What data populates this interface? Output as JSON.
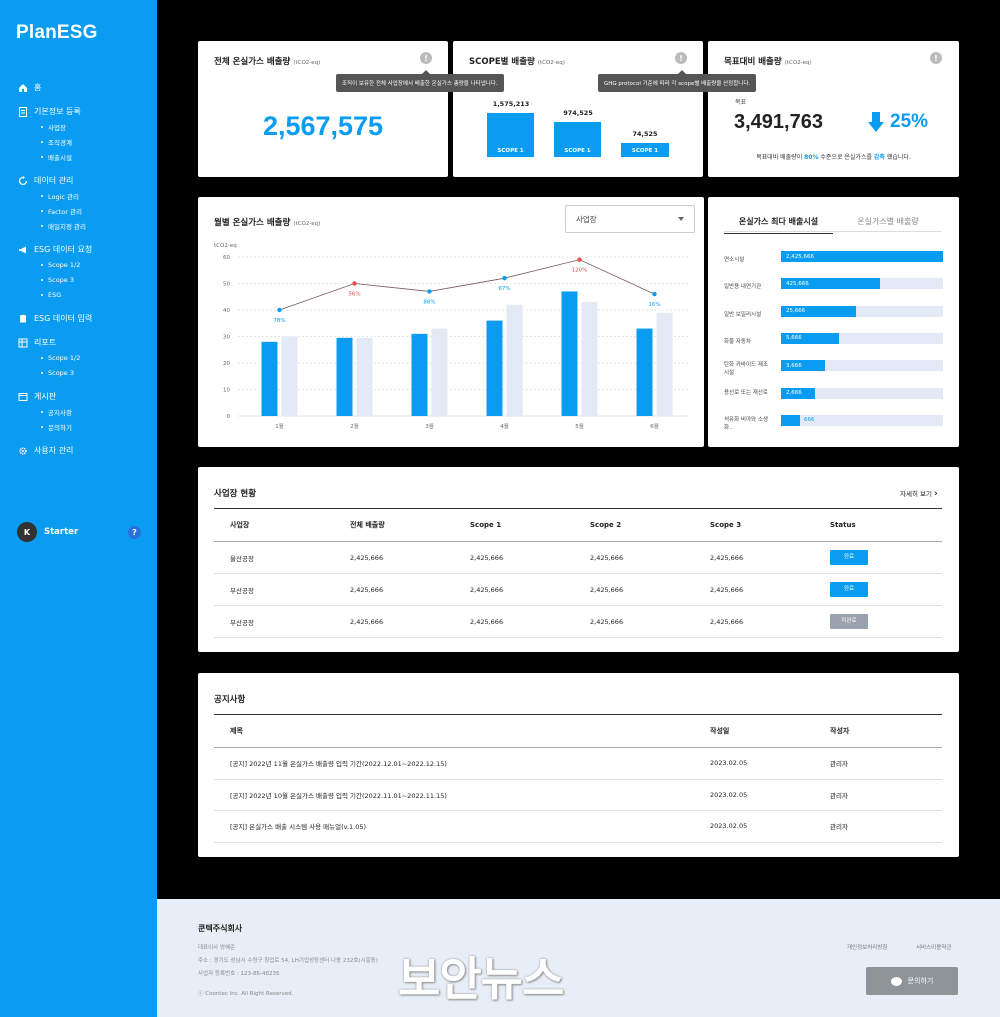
{
  "app": {
    "logo": "PlanESG"
  },
  "sidebar": {
    "items": [
      {
        "label": "홈",
        "icon": "home-icon",
        "subs": []
      },
      {
        "label": "기본정보 등록",
        "icon": "document-icon",
        "subs": [
          "사업장",
          "조직경계",
          "배출시설"
        ]
      },
      {
        "label": "데이터 관리",
        "icon": "refresh-icon",
        "subs": [
          "Logic 관리",
          "Factor 관리",
          "매일지정 관리"
        ]
      },
      {
        "label": "ESG 데이터 요청",
        "icon": "megaphone-icon",
        "subs": [
          "Scope 1/2",
          "Scope 3",
          "ESG"
        ]
      },
      {
        "label": "ESG 데이터 입력",
        "icon": "database-icon",
        "subs": []
      },
      {
        "label": "리포트",
        "icon": "report-icon",
        "subs": [
          "Scope 1/2",
          "Scope 3"
        ]
      },
      {
        "label": "게시판",
        "icon": "board-icon",
        "subs": [
          "공지사항",
          "문의하기"
        ]
      },
      {
        "label": "사용자 관리",
        "icon": "gear-icon",
        "subs": []
      }
    ],
    "user": {
      "initial": "K",
      "name": "Starter",
      "help": "?"
    }
  },
  "total_card": {
    "title": "전체 온실가스 배출량",
    "unit": "(tCO2-eq)",
    "value": "2,567,575",
    "tooltip": "조직이 보유한 전체 사업장에서 배출한 온실가스 총량을 나타냅니다."
  },
  "scope_card": {
    "title": "SCOPE별 배출량",
    "unit": "(tCO2-eq)",
    "tooltip": "GHG protocol 기준에 따라 각 scope별 배출량을 산정합니다.",
    "bars": [
      {
        "label": "SCOPE 1",
        "value": "1,575,213",
        "num": 1575213
      },
      {
        "label": "SCOPE 1",
        "value": "974,525",
        "num": 974525
      },
      {
        "label": "SCOPE 1",
        "value": "74,525",
        "num": 74525
      }
    ]
  },
  "target_card": {
    "title": "목표대비 배출량",
    "unit": "(tCO2-eq)",
    "target_label": "목표",
    "value": "3,491,763",
    "percent": "25%",
    "note_pre": "목표대비 배출량이 ",
    "note_pct": "80%",
    "note_mid": " 수준으로 온실가스를 ",
    "note_hl": "감축",
    "note_post": " 했습니다."
  },
  "monthly_card": {
    "title": "월별 온실가스 배출량",
    "unit": "(tCO2-eq)",
    "dropdown": "사업장"
  },
  "chart_data": {
    "type": "bar",
    "ylabel": "tCO2-eq",
    "ylim": [
      0,
      60
    ],
    "yticks": [
      0,
      10,
      20,
      30,
      40,
      50,
      60
    ],
    "categories": [
      "1월",
      "2월",
      "3월",
      "4월",
      "5월",
      "6월"
    ],
    "series": [
      {
        "values": [
          28,
          29.5,
          31,
          36,
          47,
          33
        ]
      },
      {
        "values": [
          30,
          29.5,
          33,
          42,
          43,
          39
        ]
      }
    ],
    "line": {
      "values": [
        40,
        50,
        47,
        52,
        59,
        46
      ],
      "labels": [
        "78%",
        "56%",
        "88%",
        "67%",
        "120%",
        "16%"
      ],
      "label_colors": [
        "#0a9cf0",
        "#e84b4b",
        "#0a9cf0",
        "#0a9cf0",
        "#e84b4b",
        "#0a9cf0"
      ]
    },
    "colors": {
      "primary": "#0a9cf0",
      "secondary": "#e4eaf5",
      "line": "#7a5a5a"
    }
  },
  "facility_card": {
    "tabs": [
      "온실가스 최다 배출시설",
      "온실가스별 배출량"
    ],
    "rows": [
      {
        "label": "연소시설",
        "value": "2,425,666",
        "ratio": 1.0
      },
      {
        "label": "일반용 내연기관",
        "value": "425,666",
        "ratio": 0.61
      },
      {
        "label": "일반 보일러시설",
        "value": "25,666",
        "ratio": 0.46
      },
      {
        "label": "화물 자동차",
        "value": "5,666",
        "ratio": 0.36
      },
      {
        "label": "탄화 카바이드 제조 시설",
        "value": "3,666",
        "ratio": 0.27
      },
      {
        "label": "용선로 또는 재선로",
        "value": "2,666",
        "ratio": 0.21
      },
      {
        "label": "석유화 비아와 소생화..",
        "value": "666",
        "ratio": 0.12
      }
    ]
  },
  "sites_card": {
    "title": "사업장 현황",
    "more": "자세히 보기",
    "headers": [
      "사업장",
      "전체 배출량",
      "Scope 1",
      "Scope 2",
      "Scope 3",
      "Status"
    ],
    "rows": [
      {
        "cells": [
          "울산공장",
          "2,425,666",
          "2,425,666",
          "2,425,666",
          "2,425,666"
        ],
        "status": "완료",
        "done": true
      },
      {
        "cells": [
          "부산공장",
          "2,425,666",
          "2,425,666",
          "2,425,666",
          "2,425,666"
        ],
        "status": "완료",
        "done": true
      },
      {
        "cells": [
          "부산공장",
          "2,425,666",
          "2,425,666",
          "2,425,666",
          "2,425,666"
        ],
        "status": "미완료",
        "done": false
      }
    ]
  },
  "notice_card": {
    "title": "공지사항",
    "headers": [
      "제목",
      "작성일",
      "작성자"
    ],
    "rows": [
      [
        "[공지] 2022년 11월 온실가스 배출량 입력 기간(2022.12.01~2022.12.15)",
        "2023.02.05",
        "관리자"
      ],
      [
        "[공지] 2022년 10월 온실가스 배출량 입력 기간(2022.11.01~2022.11.15)",
        "2023.02.05",
        "관리자"
      ],
      [
        "[공지] 온실가스 배출 시스템 사용 매뉴얼(v.1.05)",
        "2023.02.05",
        "관리자"
      ]
    ]
  },
  "footer": {
    "company": "쿤텍주식회사",
    "ceo": "대표이사 방혜준",
    "address": "주소 : 경기도 성남시 수정구 창업로 54, LH기업성장센터 나동 232호(시흥동)",
    "bizno": "사업자 등록번호 : 123-86-48235",
    "copyright": "ⓒ Coontec Inc. All Right Reserved.",
    "links": [
      "개인정보처리방침",
      "서비스이용약관"
    ],
    "contact": "문의하기"
  },
  "watermark": "보안뉴스"
}
